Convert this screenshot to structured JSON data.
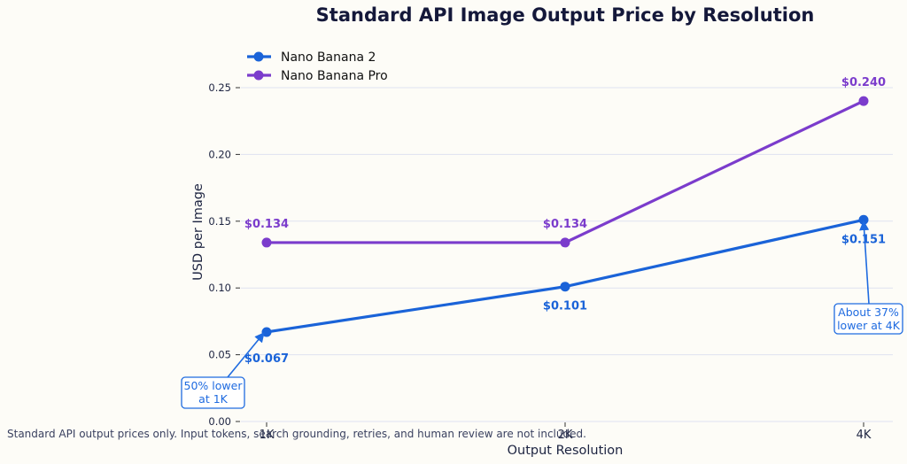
{
  "chart_data": {
    "type": "line",
    "title": "Standard API Image Output Price by Resolution",
    "xlabel": "Output Resolution",
    "ylabel": "USD per Image",
    "categories": [
      "1K",
      "2K",
      "4K"
    ],
    "ylim": [
      0,
      0.25
    ],
    "yticks": [
      "0.00",
      "0.05",
      "0.10",
      "0.15",
      "0.20",
      "0.25"
    ],
    "grid": "horizontal",
    "legend_position": "top-left",
    "series": [
      {
        "name": "Nano Banana 2",
        "color": "#1a63d8",
        "values": [
          0.067,
          0.101,
          0.151
        ],
        "labels": [
          "$0.067",
          "$0.101",
          "$0.151"
        ]
      },
      {
        "name": "Nano Banana Pro",
        "color": "#7b3ccc",
        "values": [
          0.134,
          0.134,
          0.24
        ],
        "labels": [
          "$0.134",
          "$0.134",
          "$0.240"
        ]
      }
    ],
    "annotations": [
      {
        "lines": [
          "50% lower",
          "at 1K"
        ]
      },
      {
        "lines": [
          "About 37%",
          "lower at 4K"
        ]
      }
    ],
    "footnote": "Standard API output prices only. Input tokens, search grounding, retries, and human review are not included."
  }
}
